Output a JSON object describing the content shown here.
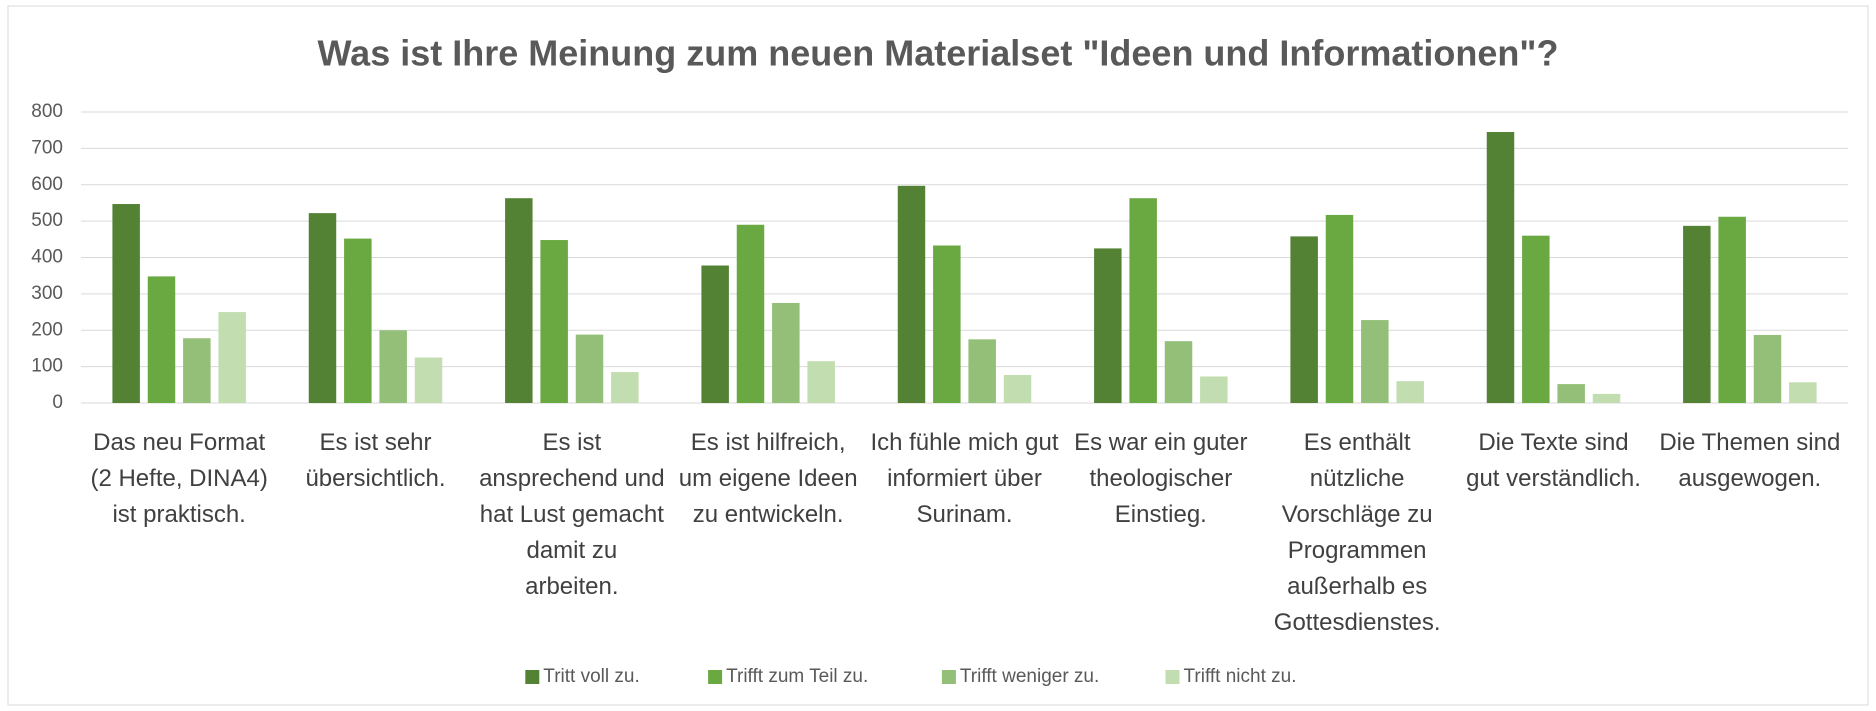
{
  "chart_data": {
    "type": "bar",
    "title": "Was ist Ihre Meinung zum neuen Materialset \"Ideen und Informationen\"?",
    "categories": [
      "Das neu Format (2 Hefte, DINA4) ist praktisch.",
      "Es ist sehr übersichtlich.",
      "Es ist ansprechend und hat Lust gemacht damit zu arbeiten.",
      "Es ist hilfreich, um eigene Ideen zu entwickeln.",
      "Ich fühle mich gut informiert über Surinam.",
      "Es war ein guter theologischer Einstieg.",
      "Es enthält nützliche Vorschläge zu Programmen außerhalb es Gottesdienstes.",
      "Die Texte sind gut verständlich.",
      "Die Themen sind ausgewogen."
    ],
    "series": [
      {
        "name": "Tritt voll zu.",
        "color": "#548235",
        "values": [
          547,
          522,
          563,
          378,
          597,
          425,
          458,
          745,
          487
        ]
      },
      {
        "name": "Trifft zum Teil zu.",
        "color": "#6aa842",
        "values": [
          348,
          452,
          448,
          490,
          433,
          563,
          517,
          460,
          512
        ]
      },
      {
        "name": "Trifft weniger zu.",
        "color": "#93bf78",
        "values": [
          178,
          200,
          188,
          275,
          175,
          170,
          228,
          52,
          187
        ]
      },
      {
        "name": "Trifft nicht zu.",
        "color": "#c2ddb0",
        "values": [
          250,
          125,
          85,
          115,
          77,
          73,
          60,
          25,
          57
        ]
      }
    ],
    "ylim": [
      0,
      800
    ],
    "yticks": [
      0,
      100,
      200,
      300,
      400,
      500,
      600,
      700,
      800
    ],
    "grid": true,
    "legend": "bottom"
  }
}
